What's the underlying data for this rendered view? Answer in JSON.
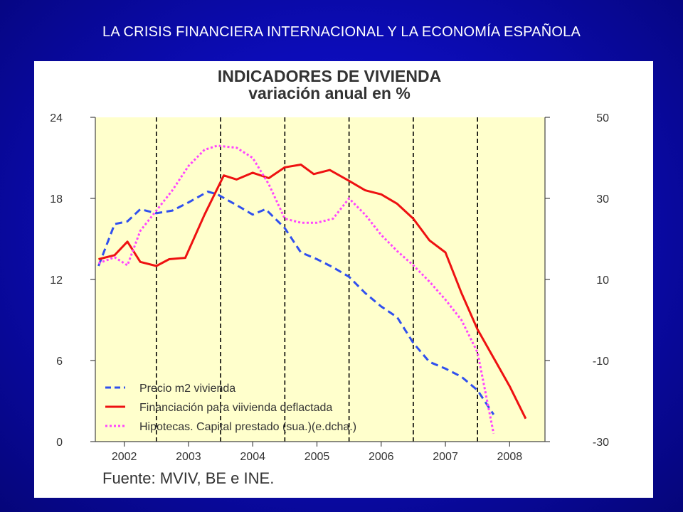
{
  "slide": {
    "title": "LA CRISIS FINANCIERA INTERNACIONAL  Y LA ECONOMÍA ESPAÑOLA"
  },
  "colors": {
    "background": "#0c0cb8",
    "plot_background": "#ffffcc",
    "precio": "#3050ee",
    "financiacion": "#ee1111",
    "hipotecas": "#ff44ff"
  },
  "chart_data": {
    "type": "line",
    "title": "INDICADORES DE VIVIENDA",
    "subtitle": "variación anual en %",
    "source": "Fuente: MVIV, BE e INE.",
    "x_categories": [
      "2002",
      "2003",
      "2004",
      "2005",
      "2006",
      "2007",
      "2008"
    ],
    "xlim": [
      2001.55,
      2008.55
    ],
    "year_dividers": [
      2002.5,
      2003.5,
      2004.5,
      2005.5,
      2006.5,
      2007.5
    ],
    "y_left": {
      "ticks": [
        "24",
        "18",
        "12",
        "6",
        "0"
      ],
      "ylim": [
        0,
        24
      ]
    },
    "y_right": {
      "ticks": [
        "50",
        "30",
        "10",
        "-10",
        "-30"
      ],
      "ylim": [
        -30,
        50
      ]
    },
    "grid": false,
    "legend_position": "bottom-left",
    "series": [
      {
        "name": "Precio m2 vivienda",
        "axis": "left",
        "style": "dashed",
        "x": [
          2001.6,
          2001.85,
          2002.05,
          2002.25,
          2002.5,
          2002.75,
          2003.0,
          2003.3,
          2003.45,
          2003.75,
          2004.0,
          2004.2,
          2004.5,
          2004.75,
          2005.0,
          2005.25,
          2005.5,
          2005.75,
          2006.0,
          2006.25,
          2006.5,
          2006.75,
          2007.0,
          2007.25,
          2007.5,
          2007.75
        ],
        "y": [
          13.0,
          16.1,
          16.3,
          17.2,
          16.9,
          17.1,
          17.7,
          18.5,
          18.3,
          17.5,
          16.8,
          17.2,
          15.8,
          14.0,
          13.5,
          12.9,
          12.2,
          11.0,
          10.0,
          9.2,
          7.3,
          5.9,
          5.4,
          4.8,
          3.8,
          2.0
        ]
      },
      {
        "name": "Financiación para viivienda deflactada",
        "axis": "left",
        "style": "solid",
        "x": [
          2001.6,
          2001.85,
          2002.05,
          2002.25,
          2002.5,
          2002.7,
          2002.95,
          2003.25,
          2003.55,
          2003.75,
          2004.0,
          2004.25,
          2004.5,
          2004.75,
          2004.95,
          2005.2,
          2005.5,
          2005.75,
          2006.0,
          2006.25,
          2006.5,
          2006.75,
          2007.0,
          2007.25,
          2007.5,
          2007.75,
          2008.0,
          2008.25
        ],
        "y": [
          13.5,
          13.8,
          14.8,
          13.3,
          13.0,
          13.5,
          13.6,
          16.8,
          19.7,
          19.4,
          19.9,
          19.5,
          20.3,
          20.5,
          19.8,
          20.1,
          19.3,
          18.6,
          18.3,
          17.6,
          16.5,
          14.9,
          14.0,
          11.0,
          8.3,
          6.2,
          4.1,
          1.7
        ]
      },
      {
        "name": "Hipotecas. Capital prestado (sua.)(e.dcha.)",
        "axis": "right",
        "style": "dotted",
        "x": [
          2001.6,
          2001.85,
          2002.05,
          2002.25,
          2002.5,
          2002.75,
          2003.0,
          2003.25,
          2003.45,
          2003.75,
          2004.0,
          2004.25,
          2004.5,
          2004.75,
          2005.0,
          2005.25,
          2005.5,
          2005.75,
          2006.0,
          2006.25,
          2006.5,
          2006.75,
          2007.0,
          2007.25,
          2007.5,
          2007.75
        ],
        "y": [
          14.0,
          15.5,
          13.5,
          22.0,
          27.0,
          32.0,
          38.0,
          42.0,
          43.0,
          42.5,
          40.0,
          33.5,
          25.0,
          24.0,
          24.0,
          25.0,
          30.0,
          26.0,
          21.0,
          17.0,
          13.5,
          9.5,
          5.0,
          0.0,
          -8.0,
          -28.0
        ]
      }
    ]
  }
}
